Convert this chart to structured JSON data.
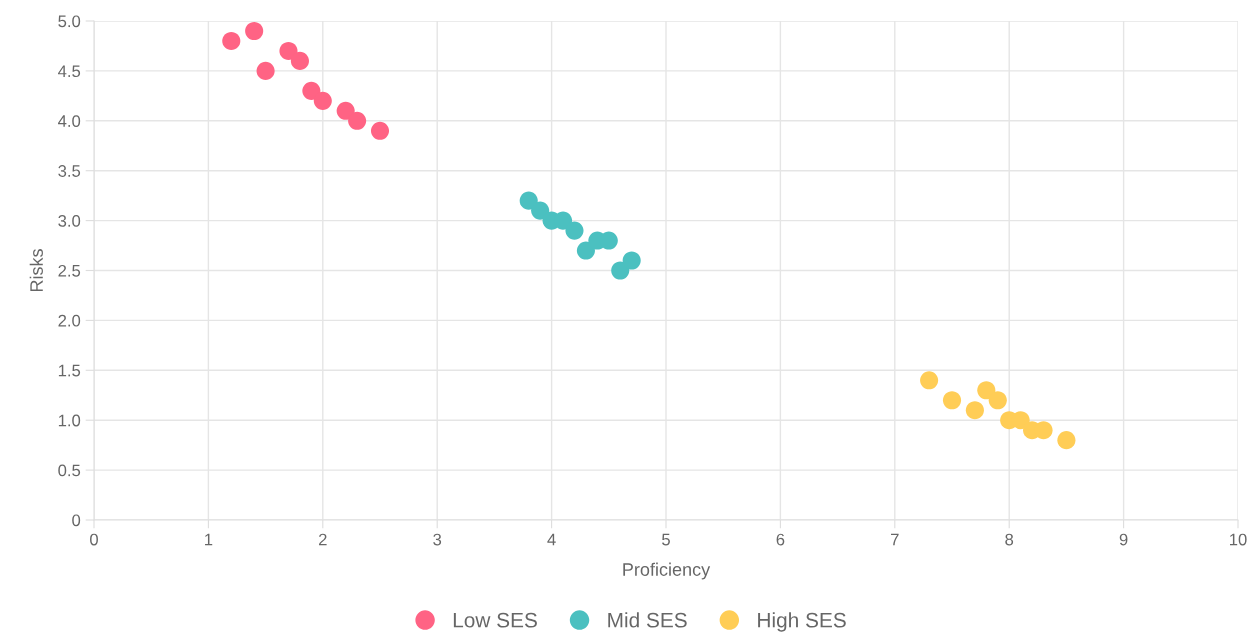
{
  "chart_data": {
    "type": "scatter",
    "xlabel": "Proficiency",
    "ylabel": "Risks",
    "xlim": [
      0,
      10
    ],
    "xticks": [
      0,
      1,
      2,
      3,
      4,
      5,
      6,
      7,
      8,
      9,
      10
    ],
    "ylim": [
      0,
      5
    ],
    "yticks": [
      0,
      {
        "value": 0.5,
        "label": "0.5"
      },
      {
        "value": 1,
        "label": "1.0"
      },
      {
        "value": 1.5,
        "label": "1.5"
      },
      {
        "value": 2,
        "label": "2.0"
      },
      {
        "value": 2.5,
        "label": "2.5"
      },
      {
        "value": 3,
        "label": "3.0"
      },
      {
        "value": 3.5,
        "label": "3.5"
      },
      {
        "value": 4,
        "label": "4.0"
      },
      {
        "value": 4.5,
        "label": "4.5"
      },
      {
        "value": 5,
        "label": "5.0"
      }
    ],
    "grid": true,
    "legend": "bottom",
    "marker": "circle",
    "series": [
      {
        "name": "Low SES",
        "color": "#ff6384",
        "x": [
          1.2,
          1.4,
          1.5,
          1.7,
          1.8,
          1.9,
          2.0,
          2.2,
          2.3,
          2.5
        ],
        "values": [
          4.8,
          4.9,
          4.5,
          4.7,
          4.6,
          4.3,
          4.2,
          4.1,
          4.0,
          3.9
        ]
      },
      {
        "name": "Mid SES",
        "color": "#4bc0c0",
        "x": [
          3.8,
          3.9,
          4.0,
          4.1,
          4.2,
          4.3,
          4.4,
          4.5,
          4.6,
          4.7
        ],
        "values": [
          3.2,
          3.1,
          3.0,
          3.0,
          2.9,
          2.7,
          2.8,
          2.8,
          2.5,
          2.6
        ]
      },
      {
        "name": "High SES",
        "color": "#ffcd56",
        "x": [
          7.3,
          7.5,
          7.7,
          7.8,
          7.9,
          8.0,
          8.1,
          8.2,
          8.3,
          8.5
        ],
        "values": [
          1.4,
          1.2,
          1.1,
          1.3,
          1.2,
          1.0,
          1.0,
          0.9,
          0.9,
          0.8
        ]
      }
    ]
  }
}
